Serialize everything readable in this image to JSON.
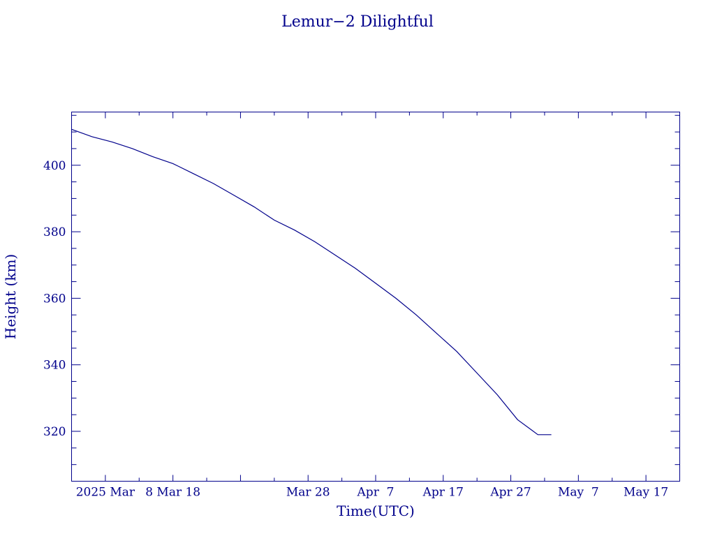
{
  "chart_data": {
    "type": "line",
    "title": "Lemur−2 Dilightful",
    "xlabel": "Time(UTC)",
    "ylabel": "Height (km)",
    "x_ticks": [
      {
        "date": "2025-02-26",
        "label": "2025 Mar"
      },
      {
        "date": "2025-03-08",
        "label": "8 Mar 18"
      },
      {
        "date": "2025-03-28",
        "label": "Mar 28"
      },
      {
        "date": "2025-04-07",
        "label": "Apr  7"
      },
      {
        "date": "2025-04-17",
        "label": "Apr 17"
      },
      {
        "date": "2025-04-27",
        "label": "Apr 27"
      },
      {
        "date": "2025-05-07",
        "label": "May  7"
      },
      {
        "date": "2025-05-17",
        "label": "May 17"
      }
    ],
    "y_ticks": [
      320,
      340,
      360,
      380,
      400
    ],
    "xlim": [
      "2025-02-21",
      "2025-05-22"
    ],
    "ylim": [
      305,
      416
    ],
    "grid": false,
    "series": [
      {
        "color": "#00008b",
        "x": [
          "2025-02-21",
          "2025-02-24",
          "2025-02-27",
          "2025-03-02",
          "2025-03-05",
          "2025-03-08",
          "2025-03-11",
          "2025-03-14",
          "2025-03-17",
          "2025-03-20",
          "2025-03-23",
          "2025-03-26",
          "2025-03-29",
          "2025-04-01",
          "2025-04-04",
          "2025-04-07",
          "2025-04-10",
          "2025-04-13",
          "2025-04-16",
          "2025-04-19",
          "2025-04-22",
          "2025-04-25",
          "2025-04-28",
          "2025-05-01",
          "2025-05-03"
        ],
        "y": [
          410.8,
          408.6,
          407.0,
          405.0,
          402.6,
          400.5,
          397.5,
          394.5,
          391.0,
          387.5,
          383.5,
          380.5,
          377.0,
          373.0,
          369.0,
          364.5,
          360.0,
          355.0,
          349.5,
          344.0,
          337.5,
          331.0,
          323.5,
          319.0,
          319.0
        ]
      }
    ]
  }
}
